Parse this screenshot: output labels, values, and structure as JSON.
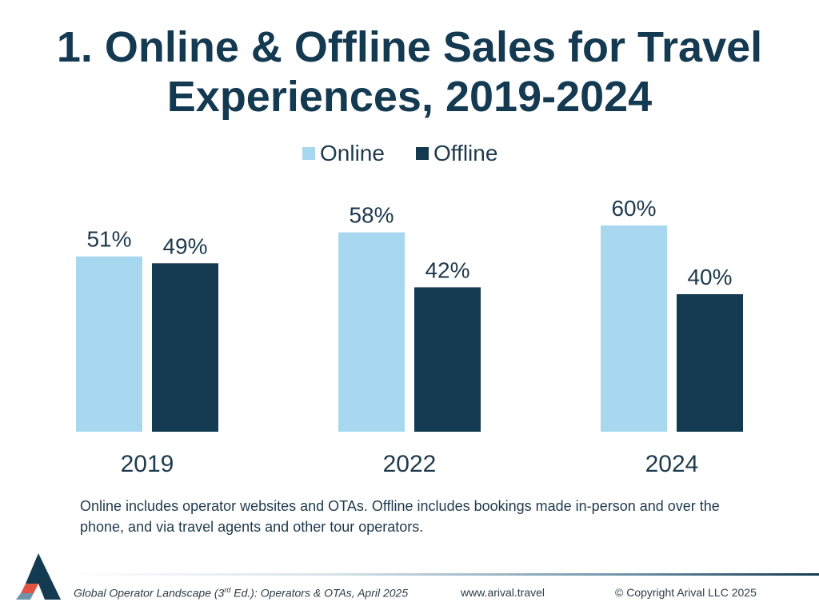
{
  "title_lines": [
    "1. Online & Offline Sales for Travel",
    "Experiences, 2019-2024"
  ],
  "chart_data": {
    "type": "bar",
    "title": "1. Online & Offline Sales for Travel Experiences, 2019-2024",
    "categories": [
      "2019",
      "2022",
      "2024"
    ],
    "series": [
      {
        "name": "Online",
        "values": [
          51,
          58,
          60
        ],
        "labels": [
          "51%",
          "58%",
          "60%"
        ],
        "color": "#a8d8ef"
      },
      {
        "name": "Offline",
        "values": [
          49,
          42,
          40
        ],
        "labels": [
          "49%",
          "42%",
          "40%"
        ],
        "color": "#143a52"
      }
    ],
    "ylim": [
      0,
      100
    ],
    "grid": false,
    "legend": "top-center",
    "xlabel": "",
    "ylabel": ""
  },
  "note": "Online includes operator websites and OTAs. Offline includes bookings made in-person and over the phone,  and via travel agents and other tour operators.",
  "footer": {
    "source_prefix": "Global Operator Landscape (3",
    "source_sup": "rd",
    "source_suffix": " Ed.):  Operators & OTAs, April 2025",
    "url": "www.arival.travel",
    "copyright": "© Copyright Arival LLC 2025"
  },
  "colors": {
    "title": "#143a52",
    "online": "#a8d8ef",
    "offline": "#143a52",
    "logo_red": "#e35342"
  },
  "icons": {
    "logo": "arival-logo-icon"
  }
}
